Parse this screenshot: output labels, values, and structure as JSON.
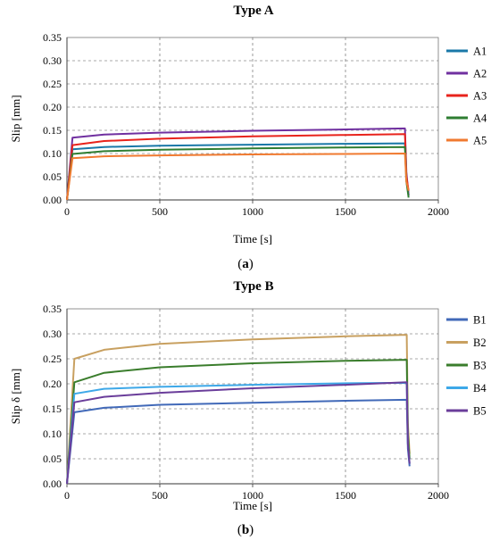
{
  "chart_data": [
    {
      "type": "line",
      "panel_label": "a",
      "title": "Type A",
      "xlabel": "Time [s]",
      "ylabel": "Slip [mm]",
      "xlim": [
        0,
        2000
      ],
      "ylim": [
        0,
        0.35
      ],
      "xticks": [
        "0",
        "500",
        "1000",
        "1500",
        "2000"
      ],
      "yticks": [
        "0.00",
        "0.05",
        "0.10",
        "0.15",
        "0.20",
        "0.25",
        "0.30",
        "0.35"
      ],
      "grid": "dashed",
      "legend": "right",
      "series": [
        {
          "name": "A1",
          "color": "#1a78a8",
          "x": [
            0,
            30,
            200,
            500,
            1000,
            1500,
            1820,
            1828,
            1840
          ],
          "y": [
            0,
            0.109,
            0.114,
            0.117,
            0.119,
            0.121,
            0.122,
            0.05,
            0.01
          ]
        },
        {
          "name": "A2",
          "color": "#7030a0",
          "x": [
            0,
            30,
            200,
            500,
            1000,
            1500,
            1820,
            1828,
            1840
          ],
          "y": [
            0,
            0.134,
            0.141,
            0.145,
            0.149,
            0.152,
            0.154,
            0.06,
            0.01
          ]
        },
        {
          "name": "A3",
          "color": "#e8231c",
          "x": [
            0,
            30,
            200,
            500,
            1000,
            1500,
            1820,
            1828,
            1840
          ],
          "y": [
            0,
            0.118,
            0.127,
            0.132,
            0.137,
            0.14,
            0.142,
            0.05,
            0.02
          ]
        },
        {
          "name": "A4",
          "color": "#2e7d32",
          "x": [
            0,
            30,
            200,
            500,
            1000,
            1500,
            1820,
            1828,
            1840
          ],
          "y": [
            0,
            0.099,
            0.105,
            0.108,
            0.111,
            0.113,
            0.114,
            0.04,
            0.005
          ]
        },
        {
          "name": "A5",
          "color": "#f07a30",
          "x": [
            0,
            30,
            200,
            500,
            1000,
            1500,
            1820,
            1828,
            1840
          ],
          "y": [
            0,
            0.09,
            0.094,
            0.096,
            0.098,
            0.099,
            0.1,
            0.04,
            0.02
          ]
        }
      ]
    },
    {
      "type": "line",
      "panel_label": "b",
      "title": "Type B",
      "xlabel": "Time [s]",
      "ylabel": "Slip δ [mm]",
      "xlim": [
        0,
        2000
      ],
      "ylim": [
        0,
        0.35
      ],
      "xticks": [
        "0",
        "500",
        "1000",
        "1500",
        "2000"
      ],
      "yticks": [
        "0.00",
        "0.05",
        "0.10",
        "0.15",
        "0.20",
        "0.25",
        "0.30",
        "0.35"
      ],
      "grid": "dashed",
      "legend": "right",
      "series": [
        {
          "name": "B1",
          "color": "#4169b8",
          "x": [
            0,
            40,
            200,
            500,
            1000,
            1500,
            1830,
            1836,
            1845
          ],
          "y": [
            0,
            0.143,
            0.152,
            0.158,
            0.162,
            0.166,
            0.168,
            0.07,
            0.035
          ]
        },
        {
          "name": "B2",
          "color": "#c8a060",
          "x": [
            0,
            40,
            200,
            500,
            1000,
            1500,
            1830,
            1836,
            1845
          ],
          "y": [
            0,
            0.25,
            0.268,
            0.28,
            0.289,
            0.295,
            0.298,
            0.12,
            0.06
          ]
        },
        {
          "name": "B3",
          "color": "#3a7d2c",
          "x": [
            0,
            40,
            200,
            500,
            1000,
            1500,
            1830,
            1836,
            1845
          ],
          "y": [
            0,
            0.203,
            0.222,
            0.233,
            0.241,
            0.246,
            0.248,
            0.1,
            0.05
          ]
        },
        {
          "name": "B4",
          "color": "#3da8e8",
          "x": [
            0,
            40,
            200,
            500,
            1000,
            1500,
            1830,
            1836,
            1845
          ],
          "y": [
            0,
            0.18,
            0.19,
            0.194,
            0.198,
            0.201,
            0.202,
            0.08,
            0.04
          ]
        },
        {
          "name": "B5",
          "color": "#6a3d9a",
          "x": [
            0,
            40,
            200,
            500,
            1000,
            1500,
            1830,
            1836,
            1845
          ],
          "y": [
            0,
            0.163,
            0.174,
            0.182,
            0.191,
            0.198,
            0.203,
            0.08,
            0.04
          ]
        }
      ]
    }
  ]
}
